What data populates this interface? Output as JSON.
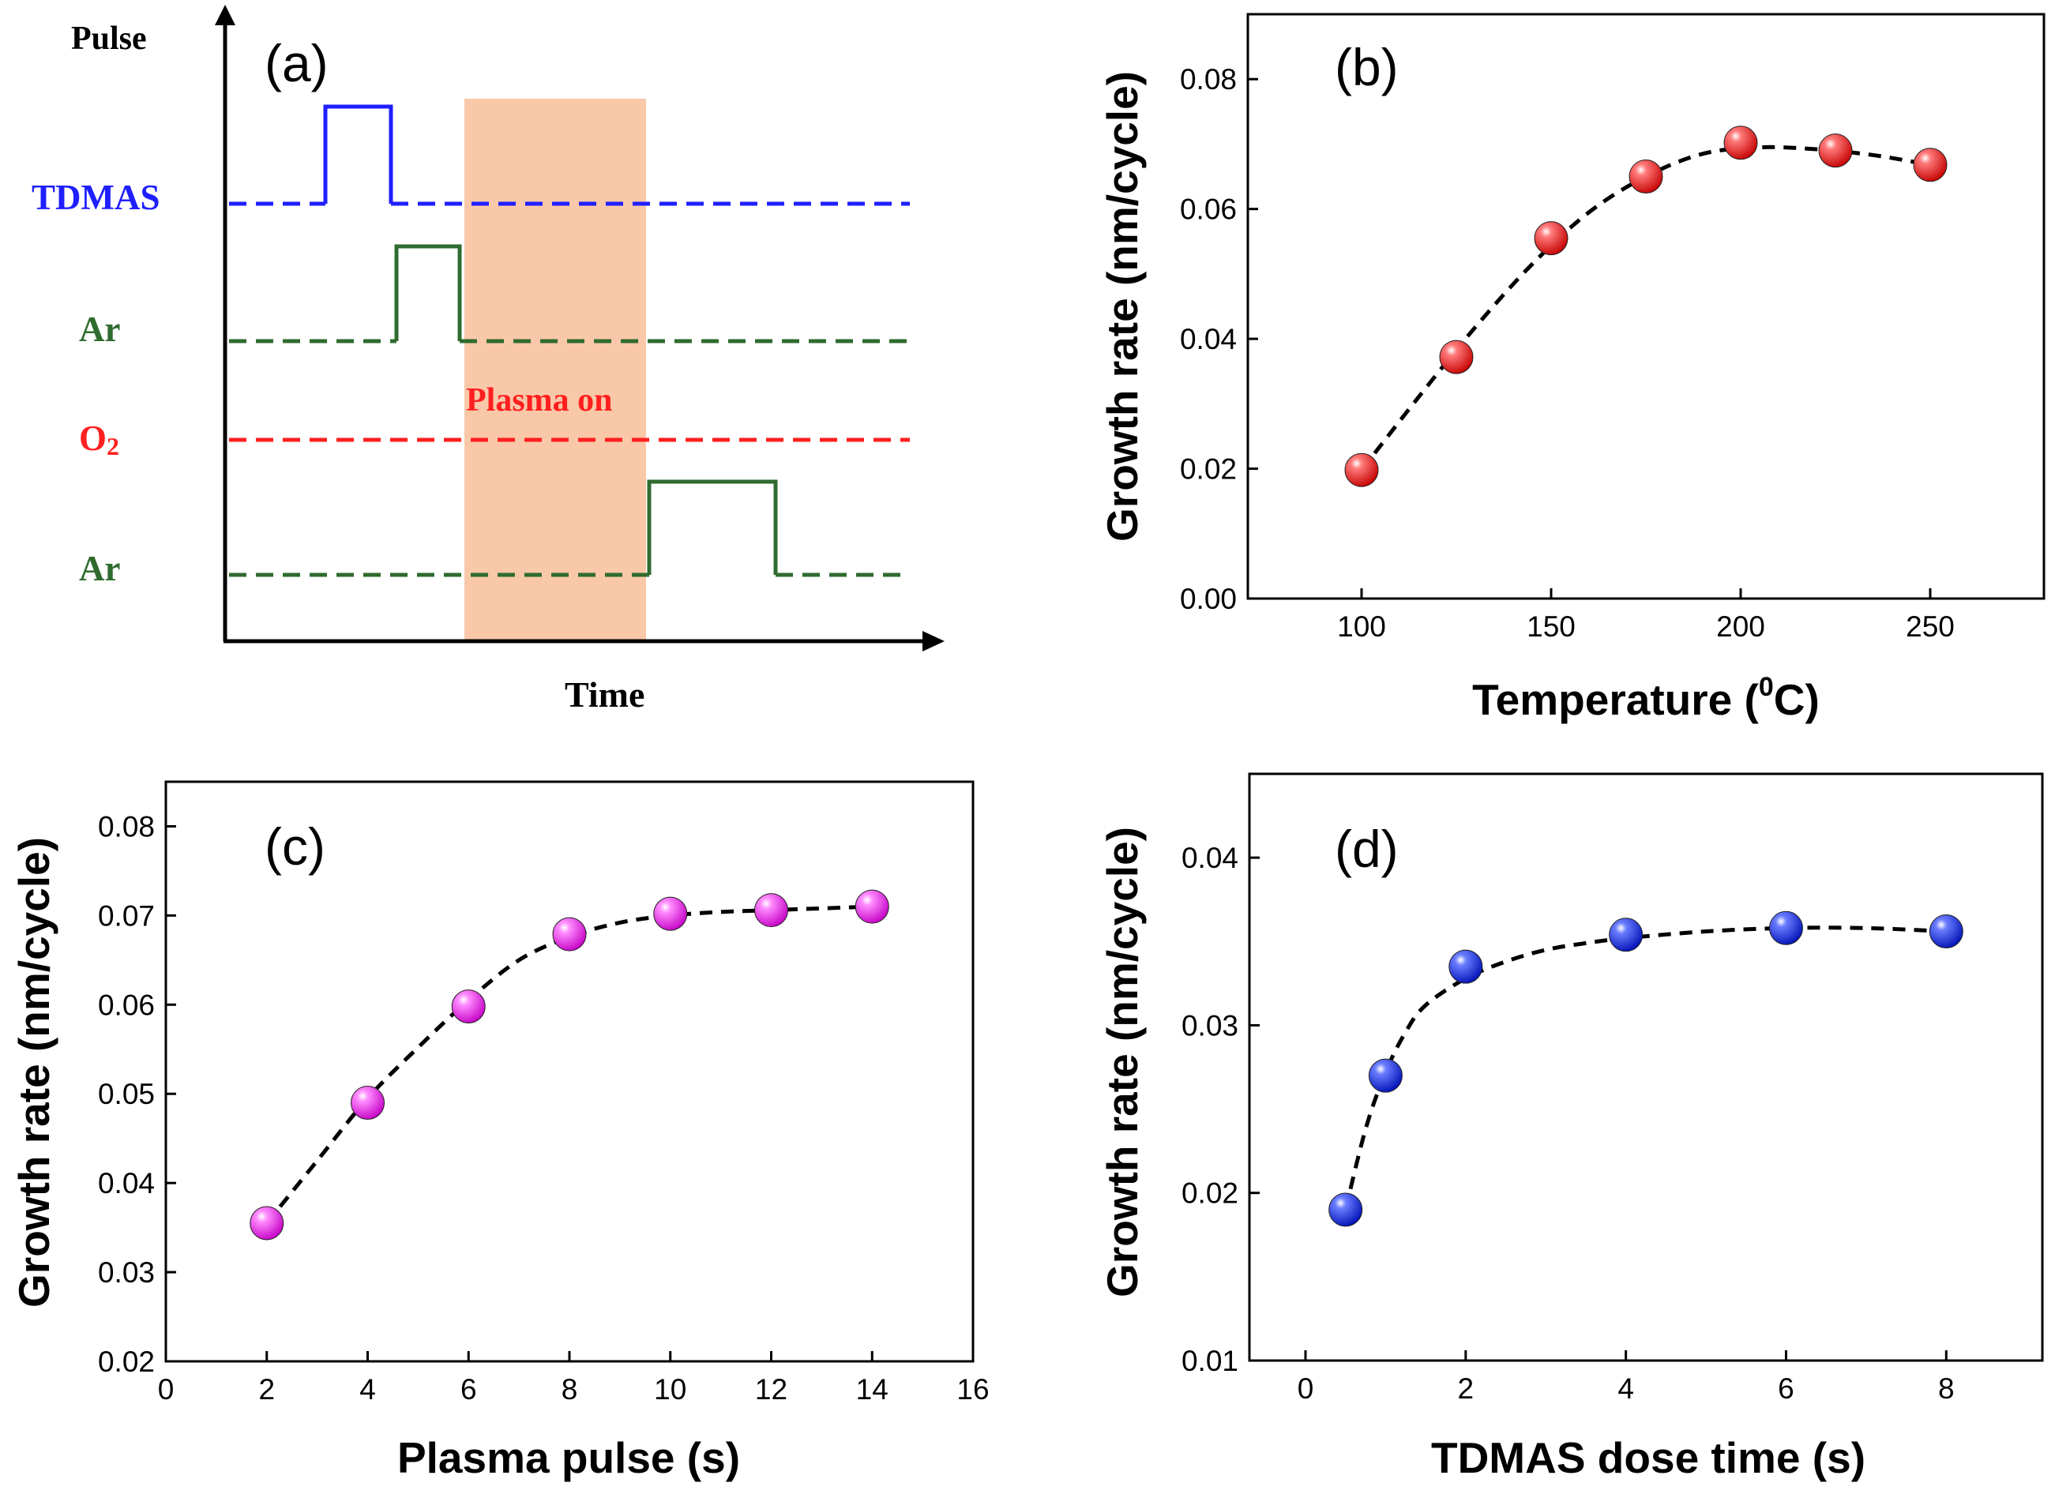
{
  "chart_data": [
    {
      "id": "a",
      "type": "timing-diagram",
      "panel_label": "(a)",
      "ylabel": "Pulse",
      "xlabel": "Time",
      "shaded_region_label": "Plasma on",
      "colors": {
        "tdmas": "#1f1fff",
        "ar": "#2f6b2f",
        "o2": "#ff1f1f",
        "shade": "#f9c8a8"
      },
      "signals": [
        {
          "name": "TDMAS",
          "color_key": "tdmas",
          "pulse": [
            0.15,
            0.25
          ]
        },
        {
          "name": "Ar",
          "color_key": "ar",
          "pulse": [
            0.25,
            0.35
          ]
        },
        {
          "name": "O",
          "subscript": "2",
          "color_key": "o2",
          "pulse": null
        },
        {
          "name": "Ar",
          "color_key": "ar",
          "pulse": [
            0.62,
            0.8
          ]
        }
      ],
      "shade_range": [
        0.35,
        0.62
      ]
    },
    {
      "id": "b",
      "type": "scatter",
      "panel_label": "(b)",
      "marker_color": "#ff1f1f",
      "xlabel": "Temperature (",
      "xlabel_sup": "0",
      "xlabel_end": "C)",
      "ylabel": "Growth rate (nm/cycle)",
      "xlim": [
        70,
        280
      ],
      "ylim": [
        0.0,
        0.09
      ],
      "xticks": [
        100,
        150,
        200,
        250
      ],
      "yticks": [
        0.0,
        0.02,
        0.04,
        0.06,
        0.08
      ],
      "ytick_labels": [
        "0.00",
        "0.02",
        "0.04",
        "0.06",
        "0.08"
      ],
      "x": [
        100,
        125,
        150,
        175,
        200,
        225,
        250
      ],
      "y": [
        0.0198,
        0.0372,
        0.0555,
        0.065,
        0.0702,
        0.069,
        0.0668
      ],
      "fit": {
        "x": [
          100,
          115,
          130,
          145,
          160,
          175,
          190,
          205,
          220,
          235,
          250
        ],
        "y": [
          0.0198,
          0.031,
          0.0418,
          0.0515,
          0.0595,
          0.065,
          0.0685,
          0.0695,
          0.0692,
          0.0683,
          0.0668
        ]
      }
    },
    {
      "id": "c",
      "type": "scatter",
      "panel_label": "(c)",
      "marker_color": "#ff2fff",
      "xlabel": "Plasma pulse (s)",
      "ylabel": "Growth rate (nm/cycle)",
      "xlim": [
        0,
        16
      ],
      "ylim": [
        0.02,
        0.085
      ],
      "xticks": [
        0,
        2,
        4,
        6,
        8,
        10,
        12,
        14,
        16
      ],
      "yticks": [
        0.02,
        0.03,
        0.04,
        0.05,
        0.06,
        0.07,
        0.08
      ],
      "ytick_labels": [
        "0.02",
        "0.03",
        "0.04",
        "0.05",
        "0.06",
        "0.07",
        "0.08"
      ],
      "x": [
        2,
        4,
        6,
        8,
        10,
        12,
        14
      ],
      "y": [
        0.0355,
        0.049,
        0.0598,
        0.0679,
        0.0702,
        0.0706,
        0.071
      ],
      "fit": {
        "x": [
          2,
          3,
          4,
          5,
          6,
          7,
          8,
          9,
          10,
          11,
          12,
          13,
          14
        ],
        "y": [
          0.0355,
          0.0425,
          0.0495,
          0.0552,
          0.0605,
          0.065,
          0.0676,
          0.0692,
          0.07,
          0.0704,
          0.0706,
          0.0708,
          0.071
        ]
      }
    },
    {
      "id": "d",
      "type": "scatter",
      "panel_label": "(d)",
      "marker_color": "#1f3fff",
      "xlabel": "TDMAS dose time (s)",
      "ylabel": "Growth rate (nm/cycle)",
      "xlim": [
        -0.7,
        9.2
      ],
      "ylim": [
        0.01,
        0.045
      ],
      "xticks": [
        0,
        2,
        4,
        6,
        8
      ],
      "yticks": [
        0.01,
        0.02,
        0.03,
        0.04
      ],
      "ytick_labels": [
        "0.01",
        "0.02",
        "0.03",
        "0.04"
      ],
      "x": [
        0.5,
        1,
        2,
        4,
        6,
        8
      ],
      "y": [
        0.019,
        0.027,
        0.0335,
        0.0354,
        0.0358,
        0.0356
      ],
      "fit": {
        "x": [
          0.5,
          0.75,
          1,
          1.25,
          1.5,
          2,
          2.5,
          3,
          3.5,
          4,
          5,
          6,
          7,
          8
        ],
        "y": [
          0.019,
          0.0238,
          0.0272,
          0.0296,
          0.0312,
          0.0328,
          0.0338,
          0.0345,
          0.0349,
          0.0352,
          0.0356,
          0.0358,
          0.0358,
          0.0356
        ]
      }
    }
  ]
}
